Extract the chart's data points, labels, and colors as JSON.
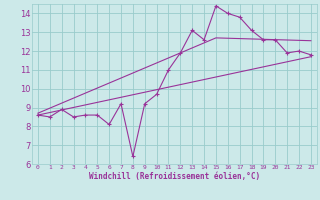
{
  "xlabel": "Windchill (Refroidissement éolien,°C)",
  "xlim": [
    -0.5,
    23.5
  ],
  "ylim": [
    6,
    14.5
  ],
  "xtick_labels": [
    "0",
    "1",
    "2",
    "3",
    "4",
    "5",
    "6",
    "7",
    "8",
    "9",
    "10",
    "11",
    "12",
    "13",
    "14",
    "15",
    "16",
    "17",
    "18",
    "19",
    "20",
    "21",
    "22",
    "23"
  ],
  "ytick_values": [
    6,
    7,
    8,
    9,
    10,
    11,
    12,
    13,
    14
  ],
  "bg_color": "#cce9e9",
  "line_color": "#993399",
  "grid_color": "#99cccc",
  "line1_x": [
    0,
    1,
    2,
    3,
    4,
    5,
    6,
    7,
    8,
    9,
    10,
    11,
    12,
    13,
    14,
    15,
    16,
    17,
    18,
    19,
    20,
    21,
    22,
    23
  ],
  "line1_y": [
    8.6,
    8.5,
    8.9,
    8.5,
    8.6,
    8.6,
    8.1,
    9.2,
    6.4,
    9.2,
    9.7,
    11.0,
    11.9,
    13.1,
    12.6,
    14.4,
    14.0,
    13.8,
    13.1,
    12.6,
    12.6,
    11.9,
    12.0,
    11.8
  ],
  "line2_x": [
    0,
    23
  ],
  "line2_y": [
    8.6,
    11.7
  ],
  "line3_x": [
    0,
    15,
    23
  ],
  "line3_y": [
    8.7,
    12.7,
    12.55
  ]
}
